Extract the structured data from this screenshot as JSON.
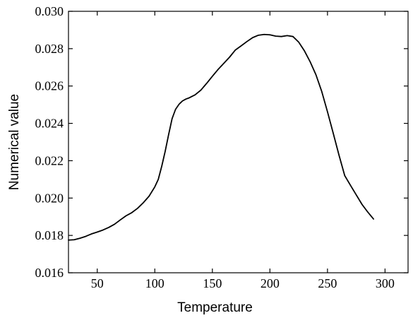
{
  "chart_data": {
    "type": "line",
    "title": "",
    "xlabel": "Temperature",
    "ylabel": "Numerical value",
    "xlim": [
      25,
      320
    ],
    "ylim": [
      0.016,
      0.03
    ],
    "xticks": [
      50,
      100,
      150,
      200,
      250,
      300
    ],
    "yticks": [
      0.016,
      0.018,
      0.02,
      0.022,
      0.024,
      0.026,
      0.028,
      0.03
    ],
    "xtick_labels": [
      "50",
      "100",
      "150",
      "200",
      "250",
      "300"
    ],
    "ytick_labels": [
      "0.016",
      "0.018",
      "0.020",
      "0.022",
      "0.024",
      "0.026",
      "0.028",
      "0.030"
    ],
    "grid": false,
    "line_color": "#000000",
    "series": [
      {
        "x": [
          25,
          30,
          35,
          40,
          45,
          50,
          55,
          60,
          65,
          70,
          75,
          80,
          85,
          90,
          95,
          100,
          103,
          106,
          109,
          112,
          115,
          118,
          121,
          124,
          127,
          130,
          135,
          140,
          145,
          150,
          155,
          160,
          165,
          170,
          175,
          180,
          185,
          190,
          195,
          200,
          205,
          210,
          215,
          220,
          225,
          230,
          235,
          240,
          245,
          250,
          255,
          260,
          265,
          270,
          275,
          280,
          285,
          290
        ],
        "y": [
          0.01775,
          0.01777,
          0.01785,
          0.01795,
          0.01808,
          0.01818,
          0.01829,
          0.01843,
          0.0186,
          0.01883,
          0.01905,
          0.01922,
          0.01945,
          0.01975,
          0.0201,
          0.0206,
          0.021,
          0.0217,
          0.0225,
          0.0234,
          0.02425,
          0.02475,
          0.02502,
          0.0252,
          0.0253,
          0.02537,
          0.02553,
          0.02578,
          0.02614,
          0.02652,
          0.02689,
          0.02722,
          0.02755,
          0.02793,
          0.02815,
          0.02838,
          0.02859,
          0.02872,
          0.02876,
          0.02874,
          0.02867,
          0.02865,
          0.0287,
          0.02865,
          0.02835,
          0.02788,
          0.02729,
          0.0266,
          0.02571,
          0.02462,
          0.02347,
          0.0223,
          0.0212,
          0.02068,
          0.02017,
          0.01966,
          0.01925,
          0.01888
        ]
      }
    ]
  }
}
